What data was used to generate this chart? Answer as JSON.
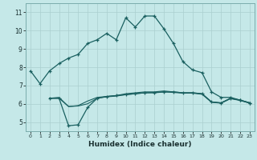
{
  "xlabel": "Humidex (Indice chaleur)",
  "background_color": "#c5e8e8",
  "grid_color": "#aacfcf",
  "line_color": "#1a6060",
  "xlim": [
    -0.5,
    23.5
  ],
  "ylim": [
    4.5,
    11.5
  ],
  "yticks": [
    5,
    6,
    7,
    8,
    9,
    10,
    11
  ],
  "xticks": [
    0,
    1,
    2,
    3,
    4,
    5,
    6,
    7,
    8,
    9,
    10,
    11,
    12,
    13,
    14,
    15,
    16,
    17,
    18,
    19,
    20,
    21,
    22,
    23
  ],
  "line1_x": [
    0,
    1,
    2,
    3,
    4,
    5,
    6,
    7,
    8,
    9,
    10,
    11,
    12,
    13,
    14,
    15,
    16,
    17,
    18,
    19,
    20,
    21,
    22,
    23
  ],
  "line1_y": [
    7.8,
    7.1,
    7.8,
    8.2,
    8.5,
    8.7,
    9.3,
    9.5,
    9.85,
    9.5,
    10.7,
    10.2,
    10.8,
    10.8,
    10.1,
    9.3,
    8.3,
    7.85,
    7.7,
    6.65,
    6.35,
    6.35,
    6.2,
    6.05
  ],
  "line2_x": [
    2,
    3,
    4,
    5,
    6,
    7,
    8,
    9,
    10,
    11,
    12,
    13,
    14,
    15,
    16,
    17,
    18,
    19,
    20,
    21,
    22,
    23
  ],
  "line2_y": [
    6.3,
    6.3,
    4.8,
    4.85,
    5.8,
    6.3,
    6.4,
    6.45,
    6.5,
    6.55,
    6.6,
    6.6,
    6.65,
    6.65,
    6.6,
    6.6,
    6.55,
    6.1,
    6.05,
    6.3,
    6.2,
    6.05
  ],
  "line3_x": [
    2,
    3,
    4,
    5,
    6,
    7,
    8,
    9,
    10,
    11,
    12,
    13,
    14,
    15,
    16,
    17,
    18,
    19,
    20,
    21,
    22,
    23
  ],
  "line3_y": [
    6.3,
    6.35,
    5.85,
    5.9,
    6.15,
    6.35,
    6.4,
    6.45,
    6.55,
    6.6,
    6.65,
    6.65,
    6.7,
    6.65,
    6.6,
    6.6,
    6.55,
    6.1,
    6.05,
    6.3,
    6.2,
    6.05
  ],
  "line4_x": [
    2,
    3,
    4,
    5,
    6,
    7,
    8,
    9,
    10,
    11,
    12,
    13,
    14,
    15,
    16,
    17,
    18,
    19,
    20,
    21,
    22,
    23
  ],
  "line4_y": [
    6.3,
    6.3,
    5.85,
    5.88,
    6.0,
    6.3,
    6.38,
    6.42,
    6.5,
    6.55,
    6.6,
    6.62,
    6.65,
    6.62,
    6.58,
    6.58,
    6.52,
    6.08,
    6.03,
    6.28,
    6.18,
    6.03
  ]
}
